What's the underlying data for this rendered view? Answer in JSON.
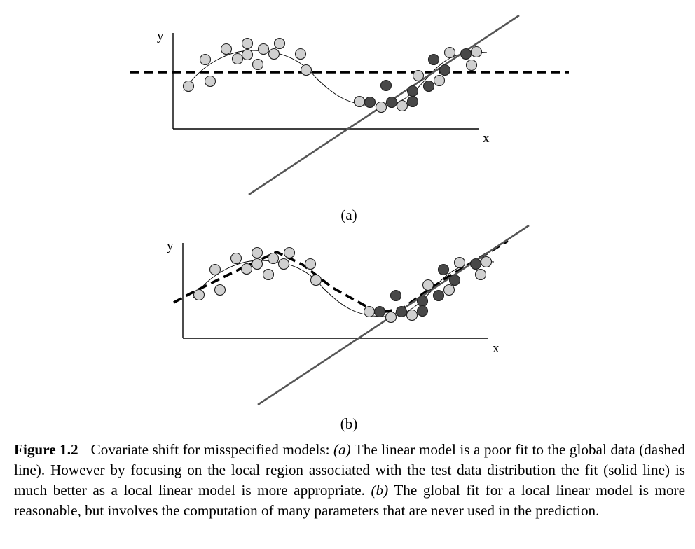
{
  "panel_a": {
    "sub_label": "(a)",
    "x_label": "x",
    "y_label": "y",
    "colors": {
      "train": "#d0d0d0",
      "test": "#484848"
    }
  },
  "panel_b": {
    "sub_label": "(b)",
    "x_label": "x",
    "y_label": "y"
  },
  "caption": {
    "figure_label": "Figure 1.2",
    "part1": "Covariate shift for misspecified models: ",
    "part2": "(a)",
    "part3": " The linear model is a poor fit to the global data (dashed line). However by focusing on the local region associated with the test data distribution the fit (solid line) is much better as a local linear model is more appropriate. ",
    "part4": "(b)",
    "part5": " The global fit for a local linear model is more reasonable, but involves the computation of many parameters that are never used in the prediction."
  }
}
